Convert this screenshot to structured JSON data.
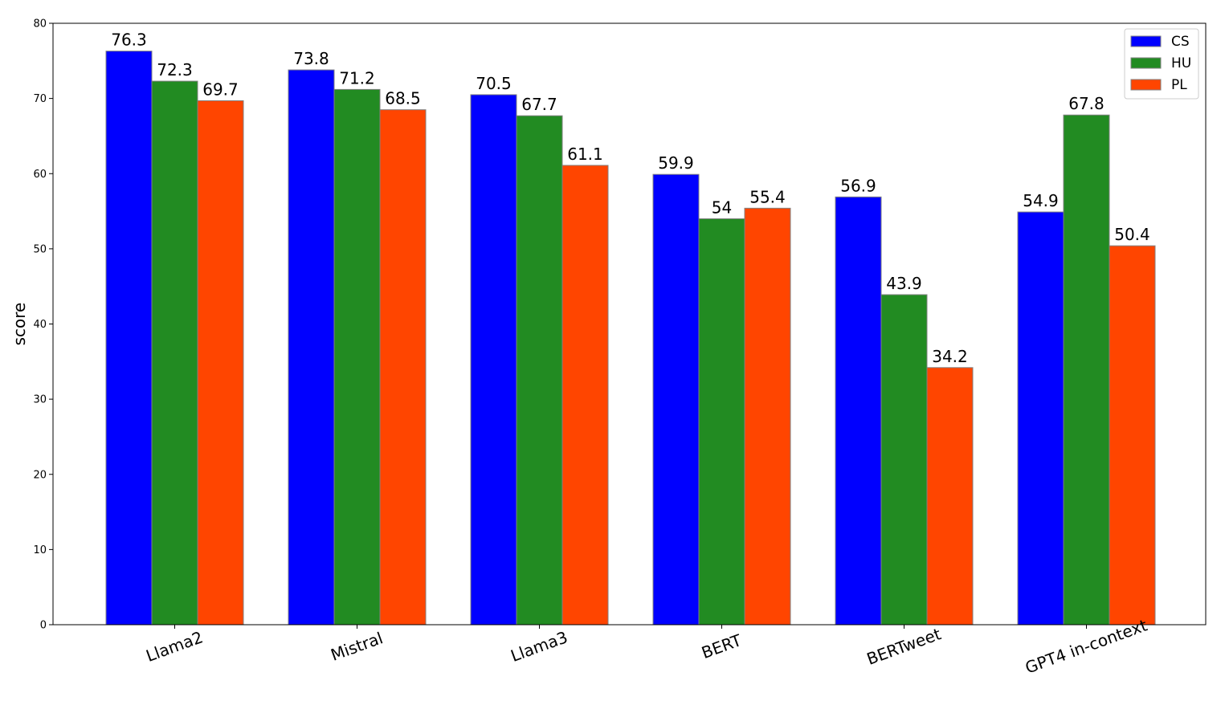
{
  "chart_data": {
    "type": "bar",
    "title": "",
    "xlabel": "",
    "ylabel": "score",
    "ylim": [
      0,
      80
    ],
    "yticks": [
      0,
      10,
      20,
      30,
      40,
      50,
      60,
      70,
      80
    ],
    "categories": [
      "Llama2",
      "Mistral",
      "Llama3",
      "BERT",
      "BERTweet",
      "GPT4 in-context"
    ],
    "series": [
      {
        "name": "CS",
        "color": "#0000ff",
        "values": [
          76.3,
          73.8,
          70.5,
          59.9,
          56.9,
          54.9
        ],
        "labels": [
          "76.3",
          "73.8",
          "70.5",
          "59.9",
          "56.9",
          "54.9"
        ]
      },
      {
        "name": "HU",
        "color": "#228b22",
        "values": [
          72.3,
          71.2,
          67.7,
          54,
          43.9,
          67.8
        ],
        "labels": [
          "72.3",
          "71.2",
          "67.7",
          "54",
          "43.9",
          "67.8"
        ]
      },
      {
        "name": "PL",
        "color": "#ff4500",
        "values": [
          69.7,
          68.5,
          61.1,
          55.4,
          34.2,
          50.4
        ],
        "labels": [
          "69.7",
          "68.5",
          "61.1",
          "55.4",
          "34.2",
          "50.4"
        ]
      }
    ],
    "grid": false,
    "legend_position": "top-right",
    "bar_edge_color": "#808080",
    "xtick_rotation_deg": -20
  }
}
